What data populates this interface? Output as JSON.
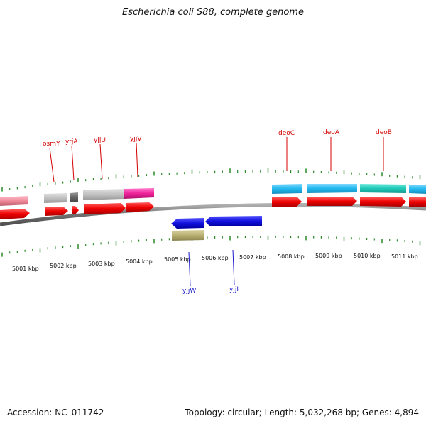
{
  "title": "Escherichia coli S88, complete genome",
  "footer": {
    "accession": "Accession: NC_011742",
    "summary": "Topology: circular; Length: 5,032,268 bp; Genes: 4,894"
  },
  "axis": {
    "tick_labels": [
      "5001 kbp",
      "5002 kbp",
      "5003 kbp",
      "5004 kbp",
      "5005 kbp",
      "5006 kbp",
      "5007 kbp",
      "5008 kbp",
      "5009 kbp",
      "5010 kbp",
      "5011 kbp"
    ]
  },
  "genes_top": [
    {
      "name": "osmY",
      "color": "#d40000"
    },
    {
      "name": "ytjA",
      "color": "#d40000"
    },
    {
      "name": "yjjU",
      "color": "#d40000"
    },
    {
      "name": "yjjV",
      "color": "#d40000"
    },
    {
      "name": "deoC",
      "color": "#d40000"
    },
    {
      "name": "deoA",
      "color": "#d40000"
    },
    {
      "name": "deoB",
      "color": "#d40000"
    }
  ],
  "genes_bottom": [
    {
      "name": "yjjW",
      "color": "#1a1acc"
    },
    {
      "name": "yjjI",
      "color": "#1a1acc"
    }
  ],
  "colors": {
    "forward_cds": "#ee1111",
    "reverse_cds": "#1515dd",
    "backbone": "#808080",
    "tick": "#2a8a2a",
    "pink": "#ee88aa",
    "gray": "#c0c0c0",
    "dark_gray": "#666666",
    "magenta": "#ee2299",
    "cyan": "#22bbee",
    "teal": "#22ccbb",
    "olive": "#b8b070"
  }
}
